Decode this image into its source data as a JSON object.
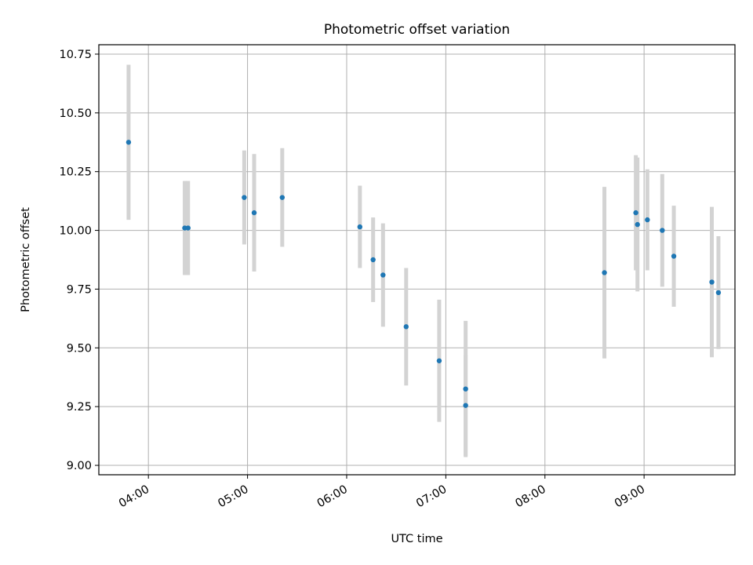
{
  "chart_data": {
    "type": "scatter",
    "title": "Photometric offset variation",
    "xlabel": "UTC time",
    "ylabel": "Photometric offset",
    "x_unit": "UTC time (HH:MM)",
    "xlim": [
      "03:30",
      "09:55"
    ],
    "ylim": [
      8.96,
      10.79
    ],
    "x_ticks": [
      "04:00",
      "05:00",
      "06:00",
      "07:00",
      "08:00",
      "09:00"
    ],
    "y_ticks": [
      9.0,
      9.25,
      9.5,
      9.75,
      10.0,
      10.25,
      10.5,
      10.75
    ],
    "y_tick_labels": [
      "9.00",
      "9.25",
      "9.50",
      "9.75",
      "10.00",
      "10.25",
      "10.50",
      "10.75"
    ],
    "grid": true,
    "errorbar_color": "#d3d3d3",
    "point_color": "#1f77b4",
    "series": [
      {
        "x": [
          "03:48",
          "04:22",
          "04:24",
          "04:58",
          "05:04",
          "05:21",
          "06:08",
          "06:16",
          "06:22",
          "06:36",
          "06:56",
          "07:12",
          "07:12",
          "08:36",
          "08:55",
          "08:56",
          "09:02",
          "09:11",
          "09:18",
          "09:41",
          "09:45"
        ],
        "y": [
          10.375,
          10.01,
          10.01,
          10.14,
          10.075,
          10.14,
          10.015,
          9.875,
          9.81,
          9.59,
          9.445,
          9.255,
          9.325,
          9.82,
          10.075,
          10.025,
          10.045,
          10.0,
          9.89,
          9.78,
          9.735
        ],
        "err": [
          0.33,
          0.2,
          0.2,
          0.2,
          0.25,
          0.21,
          0.175,
          0.18,
          0.22,
          0.25,
          0.26,
          0.215,
          0.29,
          0.365,
          0.245,
          0.285,
          0.215,
          0.24,
          0.215,
          0.32,
          0.24
        ]
      }
    ]
  }
}
